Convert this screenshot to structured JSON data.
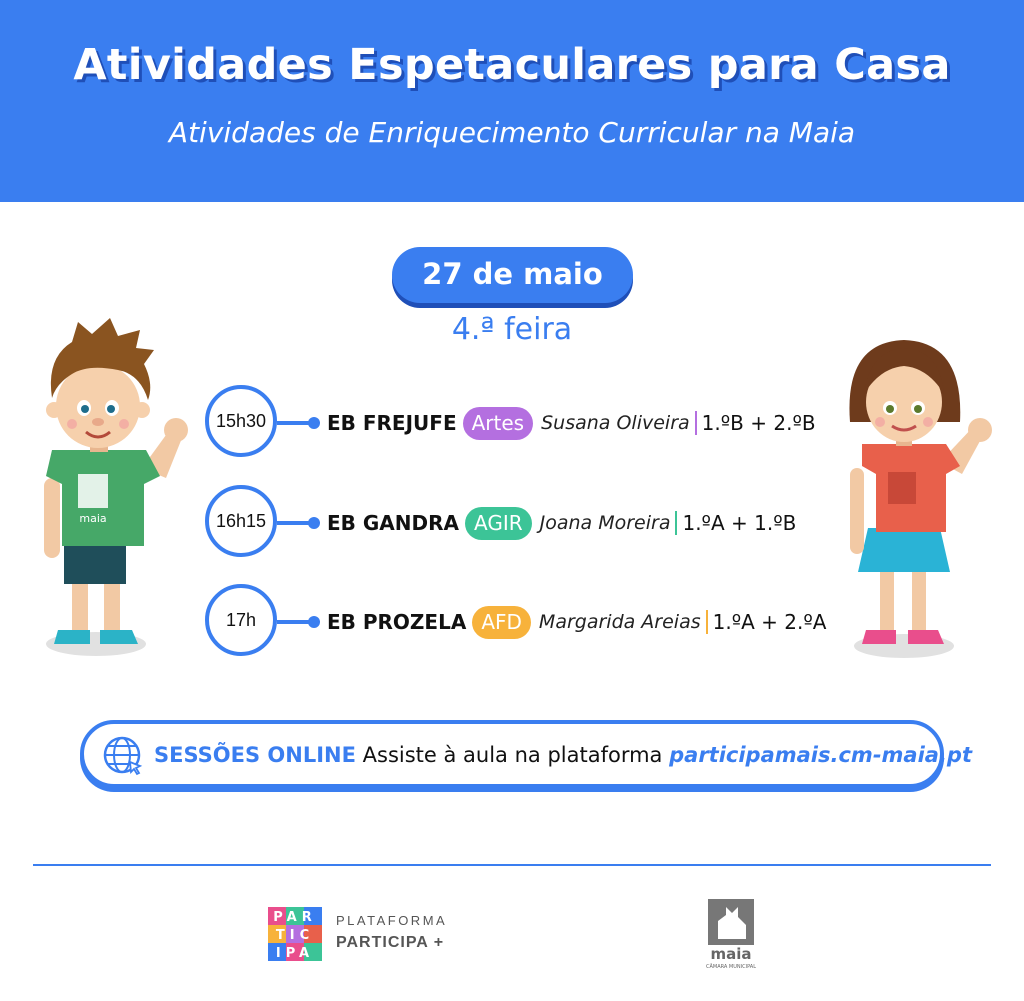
{
  "header": {
    "title": "Atividades Espetaculares para Casa",
    "subtitle": "Atividades de Enriquecimento Curricular na Maia"
  },
  "date": "27 de maio",
  "weekday": "4.ª feira",
  "sessions": [
    {
      "time": "15h30",
      "school": "EB FREJUFE",
      "subject": "Artes",
      "subject_color": "#b46fe0",
      "teacher": "Susana Oliveira",
      "classes": "1.ºB + 2.ºB"
    },
    {
      "time": "16h15",
      "school": "EB GANDRA",
      "subject": "AGIR",
      "subject_color": "#3cc497",
      "teacher": "Joana Moreira",
      "classes": "1.ºA + 1.ºB"
    },
    {
      "time": "17h",
      "school": "EB PROZELA",
      "subject": "AFD",
      "subject_color": "#f7b23b",
      "teacher": "Margarida Areias",
      "classes": "1.ºA + 2.ºA"
    }
  ],
  "online": {
    "label": "SESSÕES ONLINE",
    "text": "Assiste à aula na plataforma",
    "link": "participamais.cm-maia.pt",
    "icon": "globe-cursor-icon"
  },
  "footer": {
    "participa_logo_letters": [
      "PAR",
      "TIC",
      "IPA"
    ],
    "platform_label": "PLATAFORMA",
    "platform_name": "PARTICIPA +",
    "maia_logo": "maia",
    "maia_sub": "CÂMARA MUNICIPAL"
  },
  "colors": {
    "primary": "#3a7ef0",
    "primary_dark": "#1f4fb8"
  }
}
